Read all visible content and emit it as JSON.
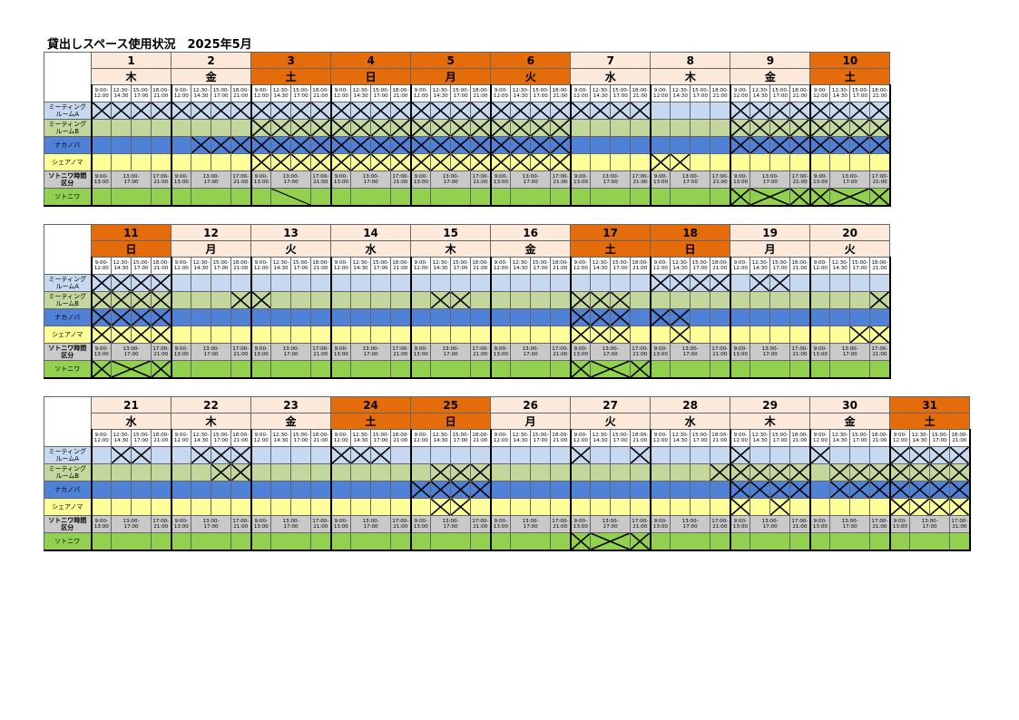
{
  "title": "貸出しスペース使用状況　2025年5月",
  "time_slots": [
    "9:00-\n12:00",
    "12:30-\n14:30",
    "15:00-\n17:00",
    "18:00-\n21:00"
  ],
  "sotoniwa_slots": [
    "9:00-\n13:00",
    "13:00-\n17:00",
    "17:00-\n21:00"
  ],
  "rooms": [
    {
      "key": "A",
      "label": "ミーティング\nルームA",
      "color": "#c6d9f1"
    },
    {
      "key": "B",
      "label": "ミーティング\nルームB",
      "color": "#c3d69b"
    },
    {
      "key": "N",
      "label": "ナカノバ",
      "color": "#4f81d6"
    },
    {
      "key": "S",
      "label": "シェアノマ",
      "color": "#ffff99"
    }
  ],
  "sotoniwa_time_label": "ソトニワ時間\n区分",
  "sotoniwa_label": "ソトニワ",
  "colors": {
    "weekday": "#fde9d9",
    "holiday": "#e46c0a",
    "sotoniwa": "#92d050",
    "time_row": "#c9c9c9"
  },
  "blocks": [
    {
      "days": [
        {
          "num": "1",
          "wd": "木",
          "hol": false,
          "A": [
            1,
            1,
            1,
            1
          ],
          "B": [
            0,
            0,
            0,
            0
          ],
          "N": [
            0,
            0,
            0,
            0
          ],
          "S": [
            0,
            0,
            0,
            0
          ],
          "so": 0
        },
        {
          "num": "2",
          "wd": "金",
          "hol": false,
          "A": [
            1,
            1,
            1,
            1
          ],
          "B": [
            0,
            0,
            0,
            0
          ],
          "N": [
            0,
            1,
            1,
            1
          ],
          "S": [
            0,
            0,
            0,
            0
          ],
          "so": 0
        },
        {
          "num": "3",
          "wd": "土",
          "hol": true,
          "A": [
            1,
            1,
            1,
            1
          ],
          "B": [
            1,
            1,
            1,
            1
          ],
          "N": [
            1,
            1,
            1,
            1
          ],
          "S": [
            1,
            1,
            1,
            1
          ],
          "so": 4
        },
        {
          "num": "4",
          "wd": "日",
          "hol": true,
          "A": [
            1,
            1,
            1,
            1
          ],
          "B": [
            1,
            1,
            1,
            1
          ],
          "N": [
            1,
            1,
            1,
            1
          ],
          "S": [
            1,
            1,
            1,
            1
          ],
          "so": 0
        },
        {
          "num": "5",
          "wd": "月",
          "hol": true,
          "A": [
            1,
            1,
            1,
            1
          ],
          "B": [
            1,
            1,
            1,
            1
          ],
          "N": [
            1,
            1,
            1,
            1
          ],
          "S": [
            1,
            1,
            1,
            1
          ],
          "so": 0
        },
        {
          "num": "6",
          "wd": "火",
          "hol": true,
          "A": [
            1,
            1,
            1,
            1
          ],
          "B": [
            1,
            1,
            1,
            1
          ],
          "N": [
            1,
            1,
            1,
            1
          ],
          "S": [
            1,
            1,
            1,
            1
          ],
          "so": 0
        },
        {
          "num": "7",
          "wd": "水",
          "hol": false,
          "A": [
            1,
            1,
            1,
            1
          ],
          "B": [
            0,
            0,
            0,
            0
          ],
          "N": [
            0,
            0,
            0,
            0
          ],
          "S": [
            0,
            0,
            0,
            0
          ],
          "so": 0
        },
        {
          "num": "8",
          "wd": "木",
          "hol": false,
          "A": [
            0,
            0,
            0,
            0
          ],
          "B": [
            0,
            0,
            0,
            0
          ],
          "N": [
            0,
            0,
            0,
            0
          ],
          "S": [
            1,
            1,
            0,
            0
          ],
          "so": 0
        },
        {
          "num": "9",
          "wd": "金",
          "hol": false,
          "A": [
            1,
            1,
            1,
            1
          ],
          "B": [
            1,
            1,
            1,
            1
          ],
          "N": [
            1,
            1,
            1,
            1
          ],
          "S": [
            0,
            0,
            0,
            0
          ],
          "so": 3
        },
        {
          "num": "10",
          "wd": "土",
          "hol": true,
          "A": [
            1,
            1,
            1,
            1
          ],
          "B": [
            1,
            1,
            1,
            1
          ],
          "N": [
            1,
            1,
            1,
            1
          ],
          "S": [
            0,
            0,
            0,
            0
          ],
          "so": 3
        }
      ]
    },
    {
      "days": [
        {
          "num": "11",
          "wd": "日",
          "hol": true,
          "A": [
            1,
            1,
            1,
            1
          ],
          "B": [
            1,
            1,
            1,
            1
          ],
          "N": [
            1,
            1,
            1,
            1
          ],
          "S": [
            1,
            1,
            1,
            1
          ],
          "so": 3
        },
        {
          "num": "12",
          "wd": "月",
          "hol": false,
          "A": [
            0,
            0,
            0,
            0
          ],
          "B": [
            0,
            0,
            0,
            1
          ],
          "N": [
            0,
            0,
            0,
            0
          ],
          "S": [
            0,
            0,
            0,
            0
          ],
          "so": 0
        },
        {
          "num": "13",
          "wd": "火",
          "hol": false,
          "A": [
            0,
            0,
            0,
            0
          ],
          "B": [
            1,
            0,
            0,
            0
          ],
          "N": [
            0,
            0,
            0,
            0
          ],
          "S": [
            0,
            0,
            0,
            0
          ],
          "so": 0
        },
        {
          "num": "14",
          "wd": "水",
          "hol": false,
          "A": [
            0,
            0,
            0,
            0
          ],
          "B": [
            0,
            0,
            0,
            0
          ],
          "N": [
            0,
            0,
            0,
            0
          ],
          "S": [
            0,
            0,
            0,
            0
          ],
          "so": 0
        },
        {
          "num": "15",
          "wd": "木",
          "hol": false,
          "A": [
            0,
            0,
            0,
            0
          ],
          "B": [
            0,
            1,
            1,
            0
          ],
          "N": [
            0,
            0,
            0,
            0
          ],
          "S": [
            0,
            0,
            0,
            0
          ],
          "so": 0
        },
        {
          "num": "16",
          "wd": "金",
          "hol": false,
          "A": [
            0,
            0,
            0,
            0
          ],
          "B": [
            0,
            0,
            0,
            0
          ],
          "N": [
            0,
            0,
            0,
            0
          ],
          "S": [
            0,
            0,
            0,
            0
          ],
          "so": 0
        },
        {
          "num": "17",
          "wd": "土",
          "hol": true,
          "A": [
            0,
            0,
            0,
            0
          ],
          "B": [
            1,
            1,
            1,
            0
          ],
          "N": [
            1,
            1,
            1,
            0
          ],
          "S": [
            1,
            1,
            1,
            0
          ],
          "so": 3
        },
        {
          "num": "18",
          "wd": "日",
          "hol": true,
          "A": [
            1,
            1,
            1,
            1
          ],
          "B": [
            0,
            0,
            0,
            0
          ],
          "N": [
            1,
            1,
            0,
            0
          ],
          "S": [
            0,
            1,
            0,
            0
          ],
          "so": 0
        },
        {
          "num": "19",
          "wd": "月",
          "hol": false,
          "A": [
            0,
            1,
            1,
            0
          ],
          "B": [
            0,
            0,
            0,
            0
          ],
          "N": [
            0,
            0,
            0,
            0
          ],
          "S": [
            0,
            0,
            0,
            0
          ],
          "so": 0
        },
        {
          "num": "20",
          "wd": "火",
          "hol": false,
          "A": [
            0,
            0,
            0,
            0
          ],
          "B": [
            0,
            0,
            0,
            1
          ],
          "N": [
            0,
            0,
            0,
            0
          ],
          "S": [
            0,
            0,
            1,
            1
          ],
          "so": 0
        }
      ]
    },
    {
      "days": [
        {
          "num": "21",
          "wd": "水",
          "hol": false,
          "A": [
            0,
            1,
            1,
            0
          ],
          "B": [
            0,
            0,
            0,
            0
          ],
          "N": [
            0,
            0,
            0,
            0
          ],
          "S": [
            0,
            0,
            0,
            0
          ],
          "so": 0
        },
        {
          "num": "22",
          "wd": "木",
          "hol": false,
          "A": [
            0,
            1,
            1,
            1
          ],
          "B": [
            0,
            0,
            1,
            1
          ],
          "N": [
            0,
            0,
            0,
            0
          ],
          "S": [
            0,
            0,
            0,
            0
          ],
          "so": 0
        },
        {
          "num": "23",
          "wd": "金",
          "hol": false,
          "A": [
            0,
            0,
            0,
            0
          ],
          "B": [
            0,
            0,
            0,
            0
          ],
          "N": [
            0,
            0,
            0,
            0
          ],
          "S": [
            0,
            0,
            0,
            0
          ],
          "so": 0
        },
        {
          "num": "24",
          "wd": "土",
          "hol": true,
          "A": [
            1,
            1,
            1,
            0
          ],
          "B": [
            0,
            0,
            0,
            0
          ],
          "N": [
            0,
            0,
            0,
            0
          ],
          "S": [
            0,
            0,
            0,
            0
          ],
          "so": 0
        },
        {
          "num": "25",
          "wd": "日",
          "hol": true,
          "A": [
            0,
            0,
            0,
            0
          ],
          "B": [
            0,
            1,
            1,
            1
          ],
          "N": [
            1,
            1,
            1,
            1
          ],
          "S": [
            0,
            1,
            1,
            0
          ],
          "so": 0
        },
        {
          "num": "26",
          "wd": "月",
          "hol": false,
          "A": [
            0,
            0,
            0,
            0
          ],
          "B": [
            0,
            0,
            0,
            0
          ],
          "N": [
            0,
            0,
            0,
            0
          ],
          "S": [
            0,
            0,
            0,
            0
          ],
          "so": 0
        },
        {
          "num": "27",
          "wd": "火",
          "hol": false,
          "A": [
            1,
            0,
            0,
            1
          ],
          "B": [
            0,
            0,
            0,
            0
          ],
          "N": [
            0,
            0,
            0,
            0
          ],
          "S": [
            0,
            0,
            0,
            0
          ],
          "so": 3
        },
        {
          "num": "28",
          "wd": "水",
          "hol": false,
          "A": [
            0,
            0,
            0,
            0
          ],
          "B": [
            0,
            0,
            0,
            1
          ],
          "N": [
            0,
            0,
            0,
            0
          ],
          "S": [
            0,
            0,
            0,
            0
          ],
          "so": 0
        },
        {
          "num": "29",
          "wd": "木",
          "hol": false,
          "A": [
            1,
            0,
            0,
            0
          ],
          "B": [
            1,
            1,
            1,
            1
          ],
          "N": [
            1,
            1,
            1,
            1
          ],
          "S": [
            1,
            0,
            1,
            0
          ],
          "so": 0
        },
        {
          "num": "30",
          "wd": "金",
          "hol": false,
          "A": [
            1,
            0,
            0,
            0
          ],
          "B": [
            0,
            1,
            1,
            1
          ],
          "N": [
            0,
            1,
            1,
            1
          ],
          "S": [
            0,
            0,
            0,
            0
          ],
          "so": 0
        },
        {
          "num": "31",
          "wd": "土",
          "hol": true,
          "A": [
            1,
            1,
            1,
            1
          ],
          "B": [
            1,
            1,
            1,
            1
          ],
          "N": [
            1,
            1,
            1,
            1
          ],
          "S": [
            1,
            1,
            1,
            1
          ],
          "so": 0
        }
      ]
    }
  ]
}
